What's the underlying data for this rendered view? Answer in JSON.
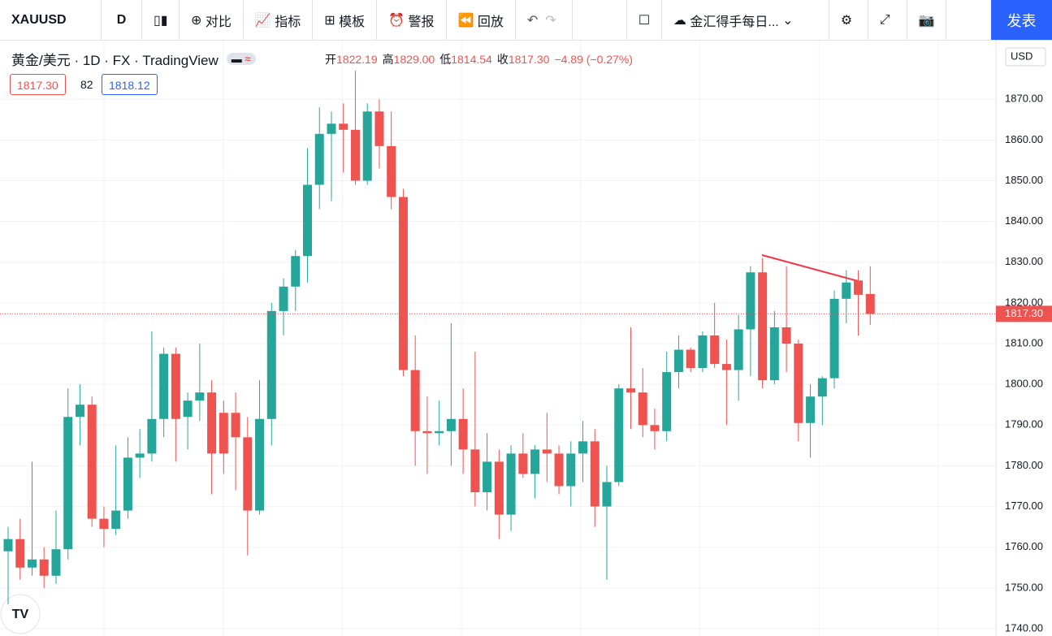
{
  "toolbar": {
    "symbol": "XAUUSD",
    "interval": "D",
    "items": [
      "对比",
      "指标",
      "模板",
      "警报",
      "回放"
    ],
    "layout_name": "金汇得手每日...",
    "publish": "发表"
  },
  "legend": {
    "title": "黄金/美元 · 1D · FX · TradingView",
    "ohlc": [
      [
        "开",
        "1822.19"
      ],
      [
        "高",
        "1829.00"
      ],
      [
        "低",
        "1814.54"
      ],
      [
        "收",
        "1817.30"
      ]
    ],
    "change": "−4.89 (−0.27%)",
    "sell": "1817.30",
    "spread": "82",
    "buy": "1818.12"
  },
  "currency": "USD",
  "chart_data": {
    "type": "candlestick",
    "up_color": "#26a69a",
    "down_color": "#ef5350",
    "open": [
      1759,
      1762,
      1755,
      1757,
      1753,
      1759.5,
      1792,
      1795,
      1767,
      1764.5,
      1769,
      1782,
      1783,
      1791.5,
      1807.5,
      1792,
      1796,
      1798,
      1793,
      1793,
      1787,
      1769,
      1791.5,
      1818,
      1824,
      1831.5,
      1849,
      1861.5,
      1864,
      1862.5,
      1850,
      1867,
      1858.5,
      1846,
      1803.5,
      1788.5,
      1788,
      1788.5,
      1791.5,
      1784,
      1773.5,
      1781,
      1768,
      1783,
      1778,
      1784,
      1783,
      1775,
      1783,
      1786,
      1770,
      1776,
      1799,
      1798,
      1790,
      1788.5,
      1803,
      1808.5,
      1804,
      1812,
      1805,
      1803.5,
      1813.5,
      1827.5,
      1801,
      1814,
      1810,
      1790.5,
      1797,
      1801.5,
      1821,
      1825.5,
      1822.19
    ],
    "high": [
      1765,
      1767,
      1781,
      1760,
      1769,
      1799,
      1800,
      1797,
      1770,
      1785,
      1787,
      1789,
      1813,
      1809,
      1809,
      1798,
      1810,
      1801,
      1796,
      1798,
      1792,
      1801,
      1820,
      1826,
      1833,
      1858,
      1868,
      1867,
      1869,
      1877,
      1869,
      1870,
      1867,
      1848,
      1812,
      1797,
      1796,
      1815,
      1799,
      1808,
      1788,
      1784,
      1785,
      1788,
      1785,
      1793,
      1785,
      1786,
      1791,
      1789,
      1780,
      1800,
      1814,
      1804,
      1794,
      1808,
      1812,
      1809,
      1813,
      1820,
      1811,
      1817,
      1829,
      1831,
      1818,
      1829,
      1811,
      1800,
      1802,
      1823,
      1828,
      1828,
      1829
    ],
    "low": [
      1746,
      1752,
      1753,
      1750,
      1751,
      1757,
      1785,
      1765,
      1760,
      1763,
      1767,
      1777,
      1781,
      1787,
      1781,
      1784,
      1791,
      1773,
      1778,
      1774,
      1758,
      1768,
      1785,
      1812,
      1818,
      1825,
      1843,
      1845,
      1852,
      1849,
      1849,
      1853,
      1843,
      1802,
      1780,
      1778,
      1785,
      1780,
      1778,
      1770,
      1769,
      1762,
      1764,
      1777,
      1772,
      1776,
      1773,
      1770,
      1776,
      1765,
      1752,
      1775,
      1789,
      1787,
      1784,
      1786,
      1799,
      1803,
      1803,
      1804,
      1790,
      1796,
      1802,
      1799,
      1800,
      1803,
      1786,
      1782,
      1790,
      1799,
      1815,
      1812,
      1814.54
    ],
    "close": [
      1762,
      1755,
      1757,
      1753,
      1759.5,
      1792,
      1795,
      1767,
      1764.5,
      1769,
      1782,
      1783,
      1791.5,
      1807.5,
      1791.5,
      1796,
      1798,
      1783,
      1783,
      1787,
      1769,
      1791.5,
      1818,
      1824,
      1831.5,
      1849,
      1861.5,
      1864,
      1862.5,
      1850,
      1867,
      1858.5,
      1846,
      1803.5,
      1788.5,
      1788,
      1788.5,
      1791.5,
      1784,
      1773.5,
      1781,
      1768,
      1783,
      1778,
      1784,
      1783,
      1775,
      1783,
      1786,
      1770,
      1776,
      1799,
      1798,
      1790,
      1788.5,
      1803,
      1808.5,
      1804,
      1812,
      1805,
      1803.5,
      1813.5,
      1827.5,
      1801,
      1814,
      1810,
      1790.5,
      1797,
      1801.5,
      1821,
      1825,
      1822,
      1817.3
    ],
    "ylim": [
      1738.2,
      1884.4
    ],
    "yticks": [
      {
        "value": 1740,
        "label": "1740.00"
      },
      {
        "value": 1750,
        "label": "1750.00"
      },
      {
        "value": 1760,
        "label": "1760.00"
      },
      {
        "value": 1770,
        "label": "1770.00"
      },
      {
        "value": 1780,
        "label": "1780.00"
      },
      {
        "value": 1790,
        "label": "1790.00"
      },
      {
        "value": 1800,
        "label": "1800.00"
      },
      {
        "value": 1810,
        "label": "1810.00"
      },
      {
        "value": 1820,
        "label": "1820.00"
      },
      {
        "value": 1830,
        "label": "1830.00"
      },
      {
        "value": 1840,
        "label": "1840.00"
      },
      {
        "value": 1850,
        "label": "1850.00"
      },
      {
        "value": 1860,
        "label": "1860.00"
      },
      {
        "value": 1870,
        "label": "1870.00"
      }
    ],
    "last_price": {
      "value": 1817.3,
      "label": "1817.30"
    },
    "grid": true
  }
}
